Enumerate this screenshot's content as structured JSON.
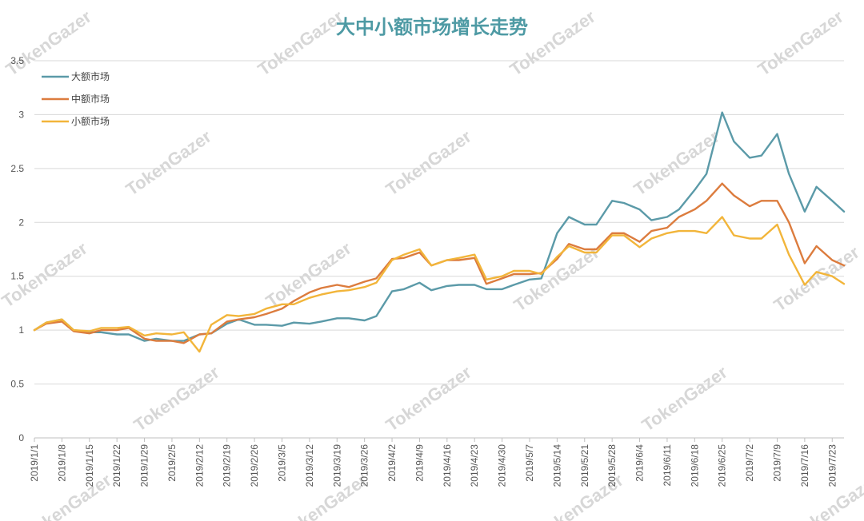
{
  "chart_data": {
    "type": "line",
    "title": "大中小额市场增长走势",
    "xlabel": "",
    "ylabel": "",
    "ylim": [
      0,
      3.5
    ],
    "yticks": [
      "0",
      "0.5",
      "1",
      "1.5",
      "2",
      "2.5",
      "3",
      "3.5"
    ],
    "grid": true,
    "legend_position": "top-left",
    "watermark": "TokenGazer",
    "x_tick_labels": [
      "2019/1/1",
      "2019/1/8",
      "2019/1/15",
      "2019/1/22",
      "2019/1/29",
      "2019/2/5",
      "2019/2/12",
      "2019/2/19",
      "2019/2/26",
      "2019/3/5",
      "2019/3/12",
      "2019/3/19",
      "2019/3/26",
      "2019/4/2",
      "2019/4/9",
      "2019/4/16",
      "2019/4/23",
      "2019/4/30",
      "2019/5/7",
      "2019/5/14",
      "2019/5/21",
      "2019/5/28",
      "2019/6/4",
      "2019/6/11",
      "2019/6/18",
      "2019/6/25",
      "2019/7/2",
      "2019/7/9",
      "2019/7/16",
      "2019/7/23"
    ],
    "x": [
      "2019/1/1",
      "2019/1/4",
      "2019/1/8",
      "2019/1/11",
      "2019/1/15",
      "2019/1/18",
      "2019/1/22",
      "2019/1/25",
      "2019/1/29",
      "2019/2/1",
      "2019/2/5",
      "2019/2/8",
      "2019/2/12",
      "2019/2/15",
      "2019/2/19",
      "2019/2/22",
      "2019/2/26",
      "2019/3/1",
      "2019/3/5",
      "2019/3/8",
      "2019/3/12",
      "2019/3/15",
      "2019/3/19",
      "2019/3/22",
      "2019/3/26",
      "2019/3/29",
      "2019/4/2",
      "2019/4/5",
      "2019/4/9",
      "2019/4/12",
      "2019/4/16",
      "2019/4/19",
      "2019/4/23",
      "2019/4/26",
      "2019/4/30",
      "2019/5/3",
      "2019/5/7",
      "2019/5/10",
      "2019/5/14",
      "2019/5/17",
      "2019/5/21",
      "2019/5/24",
      "2019/5/28",
      "2019/5/31",
      "2019/6/4",
      "2019/6/7",
      "2019/6/11",
      "2019/6/14",
      "2019/6/18",
      "2019/6/21",
      "2019/6/25",
      "2019/6/28",
      "2019/7/2",
      "2019/7/5",
      "2019/7/9",
      "2019/7/12",
      "2019/7/16",
      "2019/7/19",
      "2019/7/23",
      "2019/7/26"
    ],
    "series": [
      {
        "name": "大额市场",
        "color": "#5b9aa8",
        "values": [
          1.0,
          1.07,
          1.1,
          1.0,
          0.98,
          0.98,
          0.96,
          0.96,
          0.9,
          0.92,
          0.9,
          0.9,
          0.96,
          0.97,
          1.06,
          1.1,
          1.05,
          1.05,
          1.04,
          1.07,
          1.06,
          1.08,
          1.11,
          1.11,
          1.09,
          1.13,
          1.36,
          1.38,
          1.44,
          1.37,
          1.41,
          1.42,
          1.42,
          1.38,
          1.38,
          1.42,
          1.47,
          1.48,
          1.9,
          2.05,
          1.98,
          1.98,
          2.2,
          2.18,
          2.12,
          2.02,
          2.05,
          2.12,
          2.3,
          2.45,
          3.02,
          2.75,
          2.6,
          2.62,
          2.82,
          2.45,
          2.1,
          2.33,
          2.2,
          2.1
        ]
      },
      {
        "name": "中额市场",
        "color": "#dc7c3e",
        "values": [
          1.0,
          1.06,
          1.08,
          0.99,
          0.97,
          1.0,
          1.0,
          1.02,
          0.92,
          0.9,
          0.9,
          0.88,
          0.96,
          0.97,
          1.08,
          1.1,
          1.12,
          1.15,
          1.2,
          1.27,
          1.35,
          1.39,
          1.42,
          1.4,
          1.45,
          1.48,
          1.66,
          1.67,
          1.72,
          1.6,
          1.65,
          1.65,
          1.67,
          1.43,
          1.48,
          1.52,
          1.52,
          1.53,
          1.66,
          1.8,
          1.75,
          1.75,
          1.9,
          1.9,
          1.82,
          1.92,
          1.95,
          2.05,
          2.12,
          2.2,
          2.36,
          2.25,
          2.15,
          2.2,
          2.2,
          2.0,
          1.62,
          1.78,
          1.65,
          1.6
        ]
      },
      {
        "name": "小额市场",
        "color": "#f2b53a",
        "values": [
          1.0,
          1.07,
          1.1,
          1.0,
          0.99,
          1.02,
          1.02,
          1.03,
          0.95,
          0.97,
          0.96,
          0.98,
          0.8,
          1.05,
          1.14,
          1.13,
          1.15,
          1.2,
          1.24,
          1.24,
          1.3,
          1.33,
          1.36,
          1.37,
          1.4,
          1.44,
          1.65,
          1.7,
          1.75,
          1.6,
          1.65,
          1.67,
          1.7,
          1.47,
          1.5,
          1.55,
          1.55,
          1.52,
          1.68,
          1.78,
          1.72,
          1.72,
          1.88,
          1.88,
          1.77,
          1.85,
          1.9,
          1.92,
          1.92,
          1.9,
          2.05,
          1.88,
          1.85,
          1.85,
          1.98,
          1.7,
          1.42,
          1.54,
          1.5,
          1.43
        ]
      }
    ]
  }
}
